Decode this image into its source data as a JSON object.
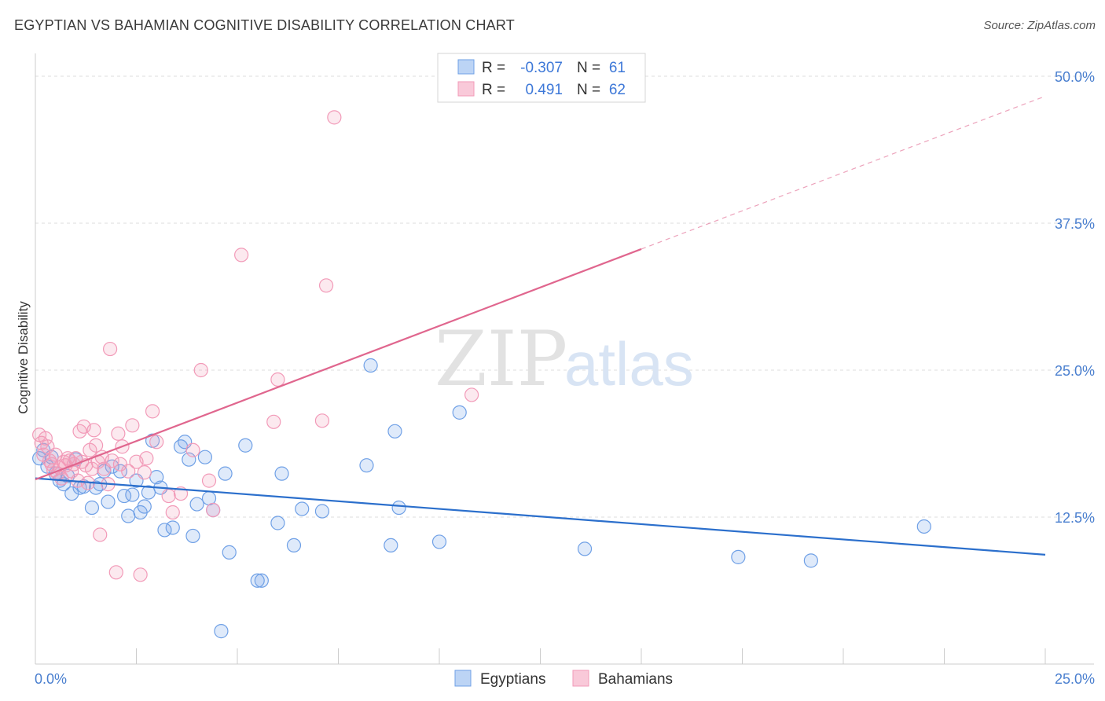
{
  "title": "EGYPTIAN VS BAHAMIAN COGNITIVE DISABILITY CORRELATION CHART",
  "source": "Source: ZipAtlas.com",
  "watermark": {
    "zip": "ZIP",
    "atlas": "atlas"
  },
  "chart_data": {
    "type": "scatter",
    "title": "EGYPTIAN VS BAHAMIAN COGNITIVE DISABILITY CORRELATION CHART",
    "xlabel": "",
    "ylabel": "Cognitive Disability",
    "xlim": [
      0,
      25
    ],
    "ylim": [
      0,
      50
    ],
    "x_tick_labels": [
      {
        "value": 0,
        "label": "0.0%"
      },
      {
        "value": 25,
        "label": "25.0%"
      }
    ],
    "y_tick_labels": [
      {
        "value": 12.5,
        "label": "12.5%"
      },
      {
        "value": 25,
        "label": "25.0%"
      },
      {
        "value": 37.5,
        "label": "37.5%"
      },
      {
        "value": 50,
        "label": "50.0%"
      }
    ],
    "grid": true,
    "legend_position": "top-center",
    "stats": [
      {
        "r_label": "R =",
        "r": "-0.307",
        "n_label": "N =",
        "n": "61"
      },
      {
        "r_label": "R =",
        "r": "0.491",
        "n_label": "N =",
        "n": "62"
      }
    ],
    "series": [
      {
        "name": "Egyptians",
        "color": "#6fa0e6",
        "line_color": "#2b6fcc",
        "trend": {
          "x0": 0,
          "y0": 15.8,
          "x1": 25,
          "y1": 9.3
        },
        "points": [
          [
            0.1,
            17.5
          ],
          [
            0.2,
            18.2
          ],
          [
            0.3,
            16.8
          ],
          [
            0.4,
            17.6
          ],
          [
            0.5,
            16.2
          ],
          [
            0.6,
            15.6
          ],
          [
            0.7,
            15.3
          ],
          [
            0.8,
            16.0
          ],
          [
            0.9,
            14.5
          ],
          [
            1.0,
            17.4
          ],
          [
            1.1,
            15.0
          ],
          [
            1.2,
            15.1
          ],
          [
            1.4,
            13.3
          ],
          [
            1.5,
            15.0
          ],
          [
            1.6,
            15.3
          ],
          [
            1.7,
            16.4
          ],
          [
            1.8,
            13.8
          ],
          [
            1.9,
            16.8
          ],
          [
            2.1,
            16.4
          ],
          [
            2.2,
            14.3
          ],
          [
            2.3,
            12.6
          ],
          [
            2.4,
            14.4
          ],
          [
            2.5,
            15.6
          ],
          [
            2.6,
            12.9
          ],
          [
            2.7,
            13.4
          ],
          [
            2.8,
            14.6
          ],
          [
            2.9,
            19.0
          ],
          [
            3.0,
            15.9
          ],
          [
            3.1,
            15.0
          ],
          [
            3.2,
            11.4
          ],
          [
            3.4,
            11.6
          ],
          [
            3.6,
            18.5
          ],
          [
            3.7,
            18.9
          ],
          [
            3.8,
            17.4
          ],
          [
            3.9,
            10.9
          ],
          [
            4.0,
            13.6
          ],
          [
            4.2,
            17.6
          ],
          [
            4.3,
            14.1
          ],
          [
            4.4,
            13.1
          ],
          [
            4.6,
            2.8
          ],
          [
            4.7,
            16.2
          ],
          [
            4.8,
            9.5
          ],
          [
            5.2,
            18.6
          ],
          [
            5.5,
            7.1
          ],
          [
            5.6,
            7.1
          ],
          [
            6.0,
            12.0
          ],
          [
            6.1,
            16.2
          ],
          [
            6.4,
            10.1
          ],
          [
            6.6,
            13.2
          ],
          [
            7.1,
            13.0
          ],
          [
            8.2,
            16.9
          ],
          [
            8.3,
            25.4
          ],
          [
            8.8,
            10.1
          ],
          [
            8.9,
            19.8
          ],
          [
            9.0,
            13.3
          ],
          [
            10.0,
            10.4
          ],
          [
            10.5,
            21.4
          ],
          [
            13.6,
            9.8
          ],
          [
            17.4,
            9.1
          ],
          [
            19.2,
            8.8
          ],
          [
            22.0,
            11.7
          ]
        ]
      },
      {
        "name": "Bahamians",
        "color": "#f29ab8",
        "line_color": "#e0668e",
        "trend": {
          "x0": 0,
          "y0": 15.7,
          "x1": 15,
          "y1": 35.3
        },
        "trend_extension": {
          "x0": 15,
          "y0": 35.3,
          "x1": 25,
          "y1": 48.3
        },
        "points": [
          [
            0.1,
            19.5
          ],
          [
            0.15,
            18.8
          ],
          [
            0.2,
            17.8
          ],
          [
            0.25,
            19.2
          ],
          [
            0.3,
            18.5
          ],
          [
            0.35,
            17.3
          ],
          [
            0.4,
            17.0
          ],
          [
            0.45,
            16.5
          ],
          [
            0.5,
            17.8
          ],
          [
            0.55,
            16.2
          ],
          [
            0.6,
            16.7
          ],
          [
            0.65,
            15.8
          ],
          [
            0.7,
            17.2
          ],
          [
            0.75,
            16.9
          ],
          [
            0.8,
            17.5
          ],
          [
            0.85,
            17.3
          ],
          [
            0.9,
            16.4
          ],
          [
            0.95,
            17.0
          ],
          [
            1.0,
            17.5
          ],
          [
            1.05,
            15.6
          ],
          [
            1.1,
            19.8
          ],
          [
            1.15,
            17.2
          ],
          [
            1.2,
            20.2
          ],
          [
            1.25,
            16.9
          ],
          [
            1.3,
            15.4
          ],
          [
            1.35,
            18.2
          ],
          [
            1.4,
            16.6
          ],
          [
            1.45,
            19.9
          ],
          [
            1.5,
            18.6
          ],
          [
            1.55,
            17.2
          ],
          [
            1.6,
            11.0
          ],
          [
            1.65,
            17.6
          ],
          [
            1.7,
            16.6
          ],
          [
            1.8,
            15.3
          ],
          [
            1.85,
            26.8
          ],
          [
            1.9,
            17.3
          ],
          [
            2.0,
            7.8
          ],
          [
            2.05,
            19.6
          ],
          [
            2.1,
            17.0
          ],
          [
            2.15,
            18.5
          ],
          [
            2.3,
            16.4
          ],
          [
            2.4,
            20.3
          ],
          [
            2.5,
            17.2
          ],
          [
            2.6,
            7.6
          ],
          [
            2.7,
            16.3
          ],
          [
            2.75,
            17.5
          ],
          [
            2.9,
            21.5
          ],
          [
            3.0,
            18.9
          ],
          [
            3.3,
            14.3
          ],
          [
            3.4,
            12.9
          ],
          [
            3.6,
            14.5
          ],
          [
            3.9,
            18.2
          ],
          [
            4.1,
            25.0
          ],
          [
            4.3,
            15.6
          ],
          [
            4.4,
            13.1
          ],
          [
            5.1,
            34.8
          ],
          [
            5.9,
            20.6
          ],
          [
            6.0,
            24.2
          ],
          [
            7.1,
            20.7
          ],
          [
            7.2,
            32.2
          ],
          [
            7.4,
            46.5
          ],
          [
            10.8,
            22.9
          ]
        ]
      }
    ]
  }
}
